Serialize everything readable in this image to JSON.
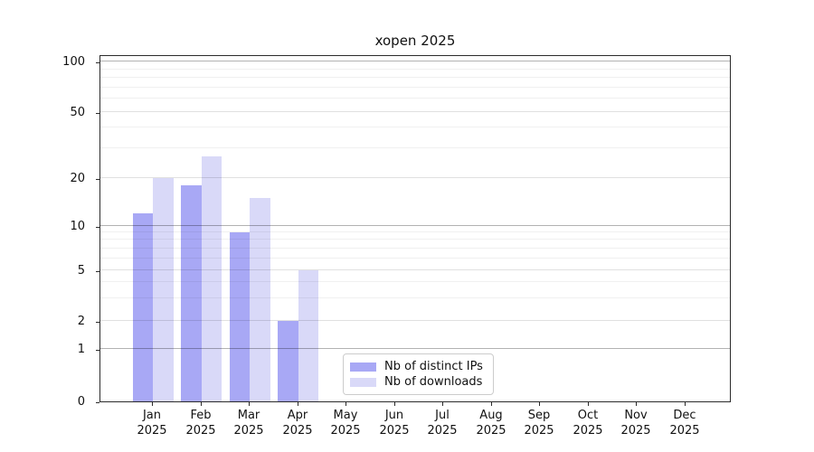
{
  "title": "xopen 2025",
  "chart_data": {
    "type": "bar",
    "title": "xopen 2025",
    "categories": [
      "Jan 2025",
      "Feb 2025",
      "Mar 2025",
      "Apr 2025",
      "May 2025",
      "Jun 2025",
      "Jul 2025",
      "Aug 2025",
      "Sep 2025",
      "Oct 2025",
      "Nov 2025",
      "Dec 2025"
    ],
    "series": [
      {
        "name": "Nb of distinct IPs",
        "color": "#a8a8f5",
        "values": [
          12,
          18,
          9,
          2,
          0,
          0,
          0,
          0,
          0,
          0,
          0,
          0
        ]
      },
      {
        "name": "Nb of downloads",
        "color": "#d9d9f8",
        "values": [
          20,
          27,
          15,
          5,
          0,
          0,
          0,
          0,
          0,
          0,
          0,
          0
        ]
      }
    ],
    "xlabel": "",
    "ylabel": "",
    "yscale": "log-like with zero baseline",
    "yticks": [
      0,
      1,
      2,
      5,
      10,
      20,
      50,
      100
    ],
    "minor_yticks": [
      3,
      4,
      6,
      7,
      8,
      9,
      30,
      40,
      60,
      70,
      80,
      90
    ],
    "ylim": [
      0,
      110
    ],
    "grid": true,
    "legend_position": "inside lower-center-left"
  },
  "legend": {
    "items": [
      {
        "label": "Nb of distinct IPs",
        "color": "#a8a8f5"
      },
      {
        "label": "Nb of downloads",
        "color": "#d9d9f8"
      }
    ]
  }
}
